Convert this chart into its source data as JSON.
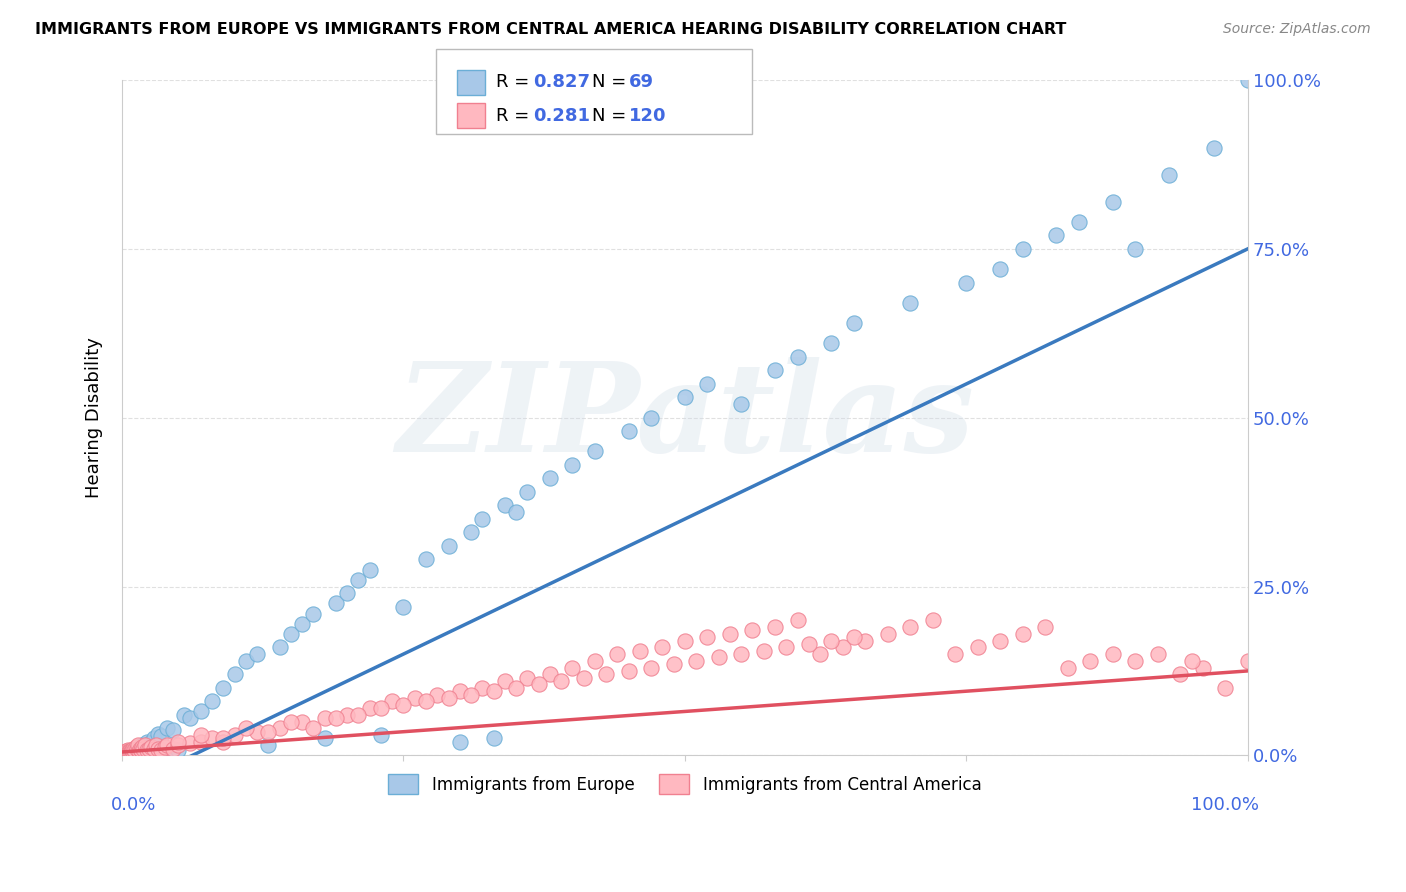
{
  "title": "IMMIGRANTS FROM EUROPE VS IMMIGRANTS FROM CENTRAL AMERICA HEARING DISABILITY CORRELATION CHART",
  "source": "Source: ZipAtlas.com",
  "ylabel": "Hearing Disability",
  "watermark": "ZIPatlas",
  "series": [
    {
      "name": "Immigrants from Europe",
      "color": "#a8c8e8",
      "edge_color": "#6baed6",
      "line_color": "#3a7abf",
      "R": 0.827,
      "N": 69,
      "x": [
        0.5,
        0.8,
        1.0,
        1.2,
        1.5,
        1.8,
        2.0,
        2.2,
        2.5,
        2.8,
        3.0,
        3.2,
        3.5,
        3.8,
        4.0,
        4.5,
        5.0,
        5.5,
        6.0,
        7.0,
        8.0,
        9.0,
        10.0,
        11.0,
        12.0,
        13.0,
        14.0,
        15.0,
        16.0,
        17.0,
        18.0,
        19.0,
        20.0,
        21.0,
        22.0,
        23.0,
        25.0,
        27.0,
        29.0,
        30.0,
        31.0,
        32.0,
        33.0,
        34.0,
        35.0,
        36.0,
        38.0,
        40.0,
        42.0,
        45.0,
        47.0,
        50.0,
        52.0,
        55.0,
        58.0,
        60.0,
        63.0,
        65.0,
        70.0,
        75.0,
        78.0,
        80.0,
        83.0,
        85.0,
        88.0,
        90.0,
        93.0,
        97.0,
        100.0
      ],
      "y": [
        0.3,
        0.5,
        0.8,
        1.0,
        1.2,
        1.5,
        0.5,
        2.0,
        1.8,
        2.5,
        0.8,
        3.2,
        2.8,
        0.5,
        4.0,
        3.8,
        0.8,
        6.0,
        5.5,
        6.5,
        8.0,
        10.0,
        12.0,
        14.0,
        15.0,
        1.5,
        16.0,
        18.0,
        19.5,
        21.0,
        2.5,
        22.5,
        24.0,
        26.0,
        27.5,
        3.0,
        22.0,
        29.0,
        31.0,
        2.0,
        33.0,
        35.0,
        2.5,
        37.0,
        36.0,
        39.0,
        41.0,
        43.0,
        45.0,
        48.0,
        50.0,
        53.0,
        55.0,
        52.0,
        57.0,
        59.0,
        61.0,
        64.0,
        67.0,
        70.0,
        72.0,
        75.0,
        77.0,
        79.0,
        82.0,
        75.0,
        86.0,
        90.0,
        100.0
      ]
    },
    {
      "name": "Immigrants from Central America",
      "color": "#ffb8c0",
      "edge_color": "#f08090",
      "line_color": "#e05060",
      "R": 0.281,
      "N": 120,
      "x": [
        0.1,
        0.15,
        0.2,
        0.25,
        0.3,
        0.35,
        0.4,
        0.45,
        0.5,
        0.55,
        0.6,
        0.65,
        0.7,
        0.75,
        0.8,
        0.85,
        0.9,
        0.95,
        1.0,
        1.1,
        1.2,
        1.3,
        1.4,
        1.5,
        1.6,
        1.7,
        1.8,
        1.9,
        2.0,
        2.2,
        2.4,
        2.6,
        2.8,
        3.0,
        3.2,
        3.5,
        3.8,
        4.0,
        4.5,
        5.0,
        6.0,
        7.0,
        8.0,
        9.0,
        10.0,
        12.0,
        14.0,
        16.0,
        18.0,
        20.0,
        22.0,
        24.0,
        26.0,
        28.0,
        30.0,
        32.0,
        34.0,
        36.0,
        38.0,
        40.0,
        42.0,
        44.0,
        46.0,
        48.0,
        50.0,
        52.0,
        54.0,
        56.0,
        58.0,
        60.0,
        62.0,
        64.0,
        66.0,
        68.0,
        70.0,
        72.0,
        74.0,
        76.0,
        78.0,
        80.0,
        82.0,
        84.0,
        86.0,
        88.0,
        90.0,
        92.0,
        94.0,
        96.0,
        98.0,
        100.0,
        5.0,
        7.0,
        9.0,
        11.0,
        13.0,
        15.0,
        17.0,
        19.0,
        21.0,
        23.0,
        25.0,
        27.0,
        29.0,
        31.0,
        33.0,
        35.0,
        37.0,
        39.0,
        41.0,
        43.0,
        45.0,
        47.0,
        49.0,
        51.0,
        53.0,
        55.0,
        57.0,
        59.0,
        61.0,
        63.0,
        65.0,
        95.0
      ],
      "y": [
        0.5,
        0.3,
        0.4,
        0.5,
        0.3,
        0.6,
        0.4,
        0.5,
        0.8,
        0.4,
        0.6,
        0.5,
        0.7,
        0.4,
        0.5,
        0.6,
        0.8,
        0.5,
        1.0,
        0.8,
        1.2,
        0.9,
        1.5,
        0.7,
        1.0,
        0.8,
        1.2,
        1.0,
        1.5,
        0.8,
        1.0,
        1.2,
        0.9,
        1.5,
        1.0,
        0.8,
        1.2,
        1.5,
        1.0,
        1.5,
        1.8,
        2.0,
        2.5,
        2.0,
        3.0,
        3.5,
        4.0,
        5.0,
        5.5,
        6.0,
        7.0,
        8.0,
        8.5,
        9.0,
        9.5,
        10.0,
        11.0,
        11.5,
        12.0,
        13.0,
        14.0,
        15.0,
        15.5,
        16.0,
        17.0,
        17.5,
        18.0,
        18.5,
        19.0,
        20.0,
        15.0,
        16.0,
        17.0,
        18.0,
        19.0,
        20.0,
        15.0,
        16.0,
        17.0,
        18.0,
        19.0,
        13.0,
        14.0,
        15.0,
        14.0,
        15.0,
        12.0,
        13.0,
        10.0,
        14.0,
        2.0,
        3.0,
        2.5,
        4.0,
        3.5,
        5.0,
        4.0,
        5.5,
        6.0,
        7.0,
        7.5,
        8.0,
        8.5,
        9.0,
        9.5,
        10.0,
        10.5,
        11.0,
        11.5,
        12.0,
        12.5,
        13.0,
        13.5,
        14.0,
        14.5,
        15.0,
        15.5,
        16.0,
        16.5,
        17.0,
        17.5,
        14.0
      ]
    }
  ],
  "xlim": [
    0,
    100
  ],
  "ylim": [
    0,
    100
  ],
  "right_axis_labels": [
    "0.0%",
    "25.0%",
    "50.0%",
    "75.0%",
    "100.0%"
  ],
  "background_color": "#ffffff",
  "grid_color": "#dddddd",
  "blue_line_intercept": -5,
  "blue_line_slope": 0.8,
  "pink_line_intercept": 0.5,
  "pink_line_slope": 0.12
}
